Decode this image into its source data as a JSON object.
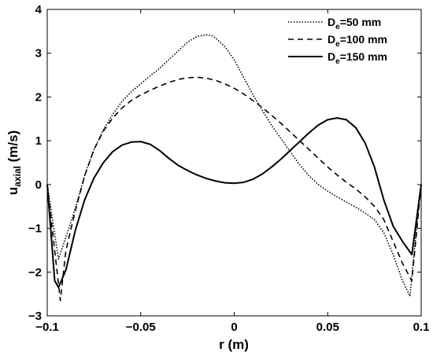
{
  "chart_data": {
    "type": "line",
    "xlabel": "r (m)",
    "ylabel": "u",
    "ylabel_sub": "axial",
    "ylabel_unit": " (m/s)",
    "xlim": [
      -0.1,
      0.1
    ],
    "ylim": [
      -3,
      4
    ],
    "xticks": [
      -0.1,
      -0.05,
      0,
      0.05,
      0.1
    ],
    "xtick_labels": [
      "−0.1",
      "−0.05",
      "0",
      "0.05",
      "0.1"
    ],
    "yticks": [
      -3,
      -2,
      -1,
      0,
      1,
      2,
      3,
      4
    ],
    "ytick_labels": [
      "−3",
      "−2",
      "−1",
      "0",
      "1",
      "2",
      "3",
      "4"
    ],
    "grid": false,
    "legend_position": "top-right",
    "series": [
      {
        "name": "D",
        "name_sub": "e",
        "name_rest": "=50 mm",
        "style": "dotted",
        "color": "#000000",
        "x": [
          -0.1,
          -0.094,
          -0.09,
          -0.085,
          -0.08,
          -0.075,
          -0.07,
          -0.065,
          -0.06,
          -0.055,
          -0.05,
          -0.045,
          -0.04,
          -0.035,
          -0.03,
          -0.025,
          -0.02,
          -0.015,
          -0.012,
          -0.01,
          -0.005,
          0,
          0.005,
          0.01,
          0.015,
          0.02,
          0.025,
          0.03,
          0.035,
          0.04,
          0.045,
          0.05,
          0.055,
          0.06,
          0.065,
          0.07,
          0.075,
          0.08,
          0.085,
          0.09,
          0.094,
          0.097,
          0.1
        ],
        "y": [
          0.0,
          -1.7,
          -1.2,
          -0.55,
          0.2,
          0.8,
          1.25,
          1.6,
          1.9,
          2.12,
          2.3,
          2.48,
          2.65,
          2.85,
          3.05,
          3.25,
          3.38,
          3.42,
          3.4,
          3.35,
          3.15,
          2.85,
          2.45,
          2.05,
          1.7,
          1.35,
          1.05,
          0.75,
          0.45,
          0.2,
          0.0,
          -0.15,
          -0.28,
          -0.4,
          -0.52,
          -0.65,
          -0.8,
          -1.1,
          -1.6,
          -2.2,
          -2.55,
          -1.2,
          0.0
        ]
      },
      {
        "name": "D",
        "name_sub": "e",
        "name_rest": "=100 mm",
        "style": "dashed",
        "color": "#000000",
        "x": [
          -0.1,
          -0.093,
          -0.09,
          -0.085,
          -0.08,
          -0.075,
          -0.07,
          -0.065,
          -0.06,
          -0.055,
          -0.05,
          -0.045,
          -0.04,
          -0.035,
          -0.03,
          -0.025,
          -0.02,
          -0.015,
          -0.01,
          -0.005,
          0,
          0.005,
          0.01,
          0.015,
          0.02,
          0.025,
          0.03,
          0.035,
          0.04,
          0.045,
          0.05,
          0.055,
          0.06,
          0.065,
          0.07,
          0.075,
          0.08,
          0.085,
          0.09,
          0.095,
          0.1
        ],
        "y": [
          0.0,
          -2.65,
          -1.5,
          -0.6,
          0.2,
          0.8,
          1.22,
          1.52,
          1.75,
          1.92,
          2.05,
          2.15,
          2.25,
          2.33,
          2.4,
          2.44,
          2.45,
          2.43,
          2.38,
          2.3,
          2.2,
          2.07,
          1.92,
          1.76,
          1.58,
          1.4,
          1.2,
          1.0,
          0.8,
          0.6,
          0.4,
          0.22,
          0.05,
          -0.1,
          -0.28,
          -0.5,
          -0.8,
          -1.3,
          -1.8,
          -2.2,
          0.0
        ]
      },
      {
        "name": "D",
        "name_sub": "e",
        "name_rest": "=150 mm",
        "style": "solid",
        "color": "#000000",
        "x": [
          -0.1,
          -0.096,
          -0.094,
          -0.09,
          -0.085,
          -0.08,
          -0.075,
          -0.07,
          -0.065,
          -0.06,
          -0.055,
          -0.05,
          -0.045,
          -0.04,
          -0.035,
          -0.03,
          -0.025,
          -0.02,
          -0.015,
          -0.01,
          -0.005,
          0,
          0.005,
          0.01,
          0.015,
          0.02,
          0.025,
          0.03,
          0.035,
          0.04,
          0.045,
          0.05,
          0.055,
          0.06,
          0.065,
          0.07,
          0.075,
          0.08,
          0.085,
          0.09,
          0.095,
          0.1
        ],
        "y": [
          0.0,
          -2.2,
          -2.35,
          -1.95,
          -1.05,
          -0.35,
          0.15,
          0.5,
          0.75,
          0.9,
          0.97,
          0.98,
          0.92,
          0.78,
          0.6,
          0.44,
          0.32,
          0.22,
          0.14,
          0.08,
          0.04,
          0.03,
          0.05,
          0.12,
          0.24,
          0.4,
          0.58,
          0.78,
          0.98,
          1.18,
          1.36,
          1.48,
          1.52,
          1.48,
          1.3,
          0.95,
          0.4,
          -0.35,
          -0.95,
          -1.3,
          -1.6,
          0.0
        ]
      }
    ]
  }
}
